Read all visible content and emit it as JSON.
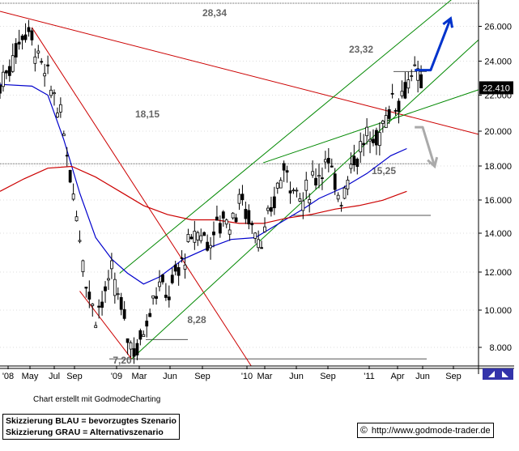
{
  "chart_data": {
    "type": "candlestick",
    "y_axis": {
      "ticks": [
        "26.000",
        "24.000",
        "22.000",
        "20.000",
        "18.000",
        "16.000",
        "14.000",
        "12.000",
        "10.000",
        "8.000"
      ],
      "ylim": [
        6.8,
        27.2
      ]
    },
    "x_axis": {
      "ticks": [
        "'08",
        "May",
        "Jul",
        "Sep",
        "'09",
        "Mar",
        "Jun",
        "Sep",
        "'10",
        "Mar",
        "Jun",
        "Sep",
        "'11",
        "Apr",
        "Jun",
        "Sep"
      ]
    },
    "last_price": "22.410",
    "levels": [
      {
        "label": "28,34",
        "value": 28.34
      },
      {
        "label": "23,32",
        "value": 23.32
      },
      {
        "label": "18,15",
        "value": 18.15
      },
      {
        "label": "15,25",
        "value": 15.25
      },
      {
        "label": "8,28",
        "value": 8.28
      },
      {
        "label": "7,20",
        "value": 7.2
      }
    ],
    "price_path": [
      [
        0,
        22.5
      ],
      [
        2,
        23.5
      ],
      [
        4,
        24.5
      ],
      [
        6,
        25.8
      ],
      [
        8,
        25.2
      ],
      [
        10,
        23.8
      ],
      [
        12,
        22.8
      ],
      [
        14,
        21.8
      ],
      [
        16,
        19.8
      ],
      [
        18,
        17.2
      ],
      [
        20,
        14.2
      ],
      [
        22,
        11.0
      ],
      [
        24,
        9.8
      ],
      [
        26,
        10.6
      ],
      [
        28,
        11.8
      ],
      [
        30,
        10.4
      ],
      [
        32,
        8.6
      ],
      [
        34,
        7.6
      ],
      [
        36,
        8.8
      ],
      [
        38,
        10.6
      ],
      [
        40,
        11.4
      ],
      [
        42,
        10.8
      ],
      [
        44,
        11.8
      ],
      [
        46,
        12.8
      ],
      [
        48,
        13.8
      ],
      [
        50,
        14.4
      ],
      [
        52,
        13.8
      ],
      [
        54,
        14.4
      ],
      [
        56,
        15.2
      ],
      [
        58,
        14.8
      ],
      [
        60,
        16.2
      ],
      [
        62,
        15.4
      ],
      [
        64,
        14.4
      ],
      [
        66,
        13.8
      ],
      [
        68,
        15.4
      ],
      [
        70,
        17.2
      ],
      [
        72,
        17.8
      ],
      [
        74,
        16.8
      ],
      [
        76,
        16.0
      ],
      [
        78,
        17.0
      ],
      [
        80,
        17.8
      ],
      [
        82,
        18.4
      ],
      [
        84,
        16.8
      ],
      [
        86,
        16.4
      ],
      [
        88,
        18.2
      ],
      [
        90,
        18.8
      ],
      [
        92,
        19.6
      ],
      [
        94,
        19.2
      ],
      [
        96,
        20.4
      ],
      [
        98,
        21.6
      ],
      [
        100,
        21.8
      ],
      [
        102,
        22.8
      ],
      [
        104,
        23.1
      ],
      [
        106,
        22.4
      ]
    ],
    "series": [
      {
        "name": "",
        "color": "#0000cc",
        "points": [
          [
            0,
            22.6
          ],
          [
            8,
            22.5
          ],
          [
            12,
            22.0
          ],
          [
            16,
            19.5
          ],
          [
            20,
            16.5
          ],
          [
            24,
            14.0
          ],
          [
            28,
            12.8
          ],
          [
            32,
            12.0
          ],
          [
            36,
            11.4
          ],
          [
            40,
            11.8
          ],
          [
            46,
            12.8
          ],
          [
            52,
            13.4
          ],
          [
            58,
            13.9
          ],
          [
            64,
            14.0
          ],
          [
            70,
            14.8
          ],
          [
            76,
            15.6
          ],
          [
            80,
            16.2
          ],
          [
            86,
            16.8
          ],
          [
            92,
            17.6
          ],
          [
            98,
            18.6
          ],
          [
            102,
            19.0
          ]
        ]
      },
      {
        "name": "",
        "color": "#cc0000",
        "points": [
          [
            0,
            16.6
          ],
          [
            6,
            17.3
          ],
          [
            12,
            17.9
          ],
          [
            18,
            18.0
          ],
          [
            24,
            17.4
          ],
          [
            30,
            16.6
          ],
          [
            36,
            15.8
          ],
          [
            42,
            15.3
          ],
          [
            48,
            15.0
          ],
          [
            54,
            15.0
          ],
          [
            60,
            14.8
          ],
          [
            66,
            14.8
          ],
          [
            72,
            15.1
          ],
          [
            78,
            15.3
          ],
          [
            84,
            15.6
          ],
          [
            90,
            15.8
          ],
          [
            96,
            16.1
          ],
          [
            102,
            16.6
          ]
        ]
      }
    ],
    "lines": [
      {
        "color": "#cc0000",
        "from": [
          0,
          26.7
        ],
        "to": [
          120,
          19.8
        ]
      },
      {
        "color": "#cc0000",
        "from": [
          8,
          25.8
        ],
        "to": [
          63,
          6.8
        ]
      },
      {
        "color": "#cc0000",
        "from": [
          20,
          11.0
        ],
        "to": [
          33,
          7.2
        ]
      },
      {
        "color": "#008800",
        "from": [
          33,
          7.2
        ],
        "to": [
          120,
          25.1
        ]
      },
      {
        "color": "#008800",
        "from": [
          30,
          12.0
        ],
        "to": [
          114,
          27.5
        ]
      },
      {
        "color": "#008800",
        "from": [
          66,
          18.2
        ],
        "to": [
          120,
          22.3
        ]
      }
    ],
    "scenarios": [
      {
        "color": "#0033cc",
        "points": [
          [
            104,
            23.4
          ],
          [
            108,
            23.4
          ],
          [
            113,
            26.3
          ]
        ]
      },
      {
        "color": "#aaaaaa",
        "points": [
          [
            104,
            20.2
          ],
          [
            106,
            20.2
          ],
          [
            109,
            18.0
          ]
        ]
      }
    ]
  },
  "texts": {
    "credit": "Chart erstellt mit GodmodeCharting",
    "legend_line1": "Skizzierung BLAU = bevorzugtes Szenario",
    "legend_line2": "Skizzierung GRAU = Alternativszenario",
    "copyright_symbol": "©",
    "source_url": "http://www.godmode-trader.de"
  }
}
